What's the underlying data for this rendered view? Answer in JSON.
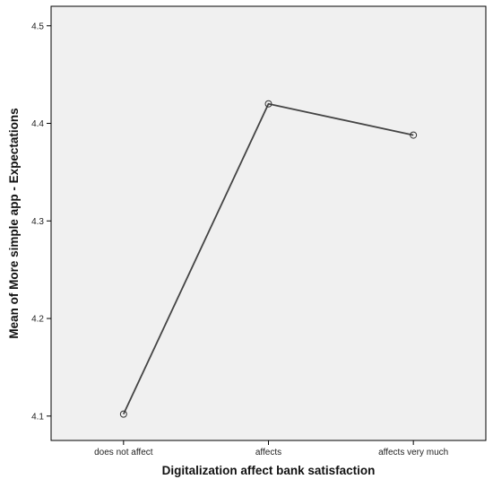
{
  "chart_data": {
    "type": "line",
    "title": "",
    "xlabel": "Digitalization affect bank satisfaction",
    "ylabel": "Mean of More simple app - Expectations",
    "categories": [
      "does not affect",
      "affects",
      "affects very much"
    ],
    "series": [
      {
        "values": [
          4.102,
          4.42,
          4.388
        ]
      }
    ],
    "ylim": [
      4.075,
      4.52
    ],
    "yticks": [
      4.1,
      4.2,
      4.3,
      4.4,
      4.5
    ],
    "ytick_labels": [
      "4.1",
      "4.2",
      "4.3",
      "4.4",
      "4.5"
    ],
    "grid": false,
    "legend": "none",
    "marker": "open-circle",
    "colors": {
      "plot_background": "#f0f0f0",
      "line": "#444444",
      "marker_stroke": "#333333",
      "frame": "#000000"
    }
  }
}
